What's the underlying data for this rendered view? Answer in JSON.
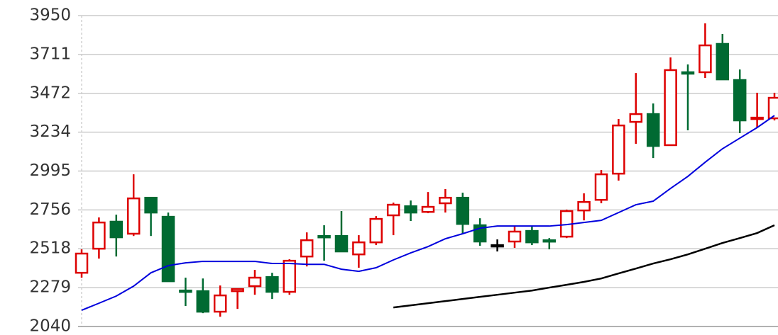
{
  "chart_data": {
    "type": "candlestick",
    "open": [
      2370,
      2518,
      2684,
      2610,
      2831,
      2714,
      2261,
      2257,
      2131,
      2257,
      2288,
      2344,
      2253,
      2470,
      2596,
      2596,
      2483,
      2557,
      2723,
      2779,
      2744,
      2797,
      2831,
      2662,
      2540,
      2562,
      2627,
      2570,
      2592,
      2753,
      2818,
      2979,
      3297,
      3345,
      3154,
      3602,
      3602,
      3776,
      3554,
      3315,
      3319
    ],
    "high": [
      2514,
      2710,
      2727,
      2975,
      2831,
      2740,
      2340,
      2335,
      2292,
      2270,
      2388,
      2370,
      2453,
      2618,
      2662,
      2749,
      2601,
      2718,
      2801,
      2814,
      2866,
      2884,
      2862,
      2705,
      2575,
      2653,
      2653,
      2583,
      2758,
      2858,
      3001,
      3315,
      3597,
      3410,
      3693,
      3650,
      3902,
      3837,
      3619,
      3476,
      3476
    ],
    "low": [
      2340,
      2457,
      2470,
      2596,
      2596,
      2318,
      2166,
      2122,
      2100,
      2148,
      2235,
      2209,
      2235,
      2409,
      2444,
      2501,
      2401,
      2540,
      2601,
      2688,
      2736,
      2740,
      2610,
      2536,
      2501,
      2523,
      2540,
      2514,
      2583,
      2692,
      2797,
      2936,
      3162,
      3075,
      3154,
      3245,
      3567,
      3558,
      3228,
      3262,
      3306
    ],
    "close": [
      2488,
      2679,
      2588,
      2827,
      2740,
      2318,
      2253,
      2131,
      2231,
      2270,
      2340,
      2253,
      2444,
      2570,
      2588,
      2501,
      2557,
      2701,
      2788,
      2740,
      2775,
      2831,
      2670,
      2562,
      2540,
      2623,
      2557,
      2562,
      2749,
      2805,
      2975,
      3275,
      3345,
      3149,
      3615,
      3593,
      3767,
      3558,
      3306,
      3323,
      3445
    ],
    "up_color": "#dd0000",
    "down_color": "#006a32",
    "flat_color": "#000000",
    "series": [
      {
        "color": "#0000dd",
        "values": [
          2140,
          2183,
          2227,
          2288,
          2370,
          2414,
          2431,
          2440,
          2440,
          2440,
          2440,
          2427,
          2427,
          2422,
          2422,
          2392,
          2379,
          2401,
          2449,
          2492,
          2531,
          2579,
          2610,
          2644,
          2657,
          2657,
          2657,
          2657,
          2666,
          2679,
          2692,
          2740,
          2788,
          2810,
          2888,
          2962,
          3049,
          3132,
          3197,
          3262,
          3336
        ]
      },
      {
        "color": "#000000",
        "values": [
          null,
          null,
          null,
          null,
          null,
          null,
          null,
          null,
          null,
          null,
          null,
          null,
          null,
          null,
          null,
          null,
          null,
          null,
          2157,
          2170,
          2183,
          2196,
          2209,
          2222,
          2235,
          2248,
          2261,
          2279,
          2296,
          2314,
          2335,
          2366,
          2396,
          2427,
          2453,
          2483,
          2518,
          2553,
          2583,
          2614,
          2662
        ]
      }
    ],
    "ylim": [
      2040,
      3950
    ],
    "yticks": [
      2040,
      2279,
      2518,
      2756,
      2995,
      3234,
      3472,
      3711,
      3950
    ],
    "grid": true
  }
}
